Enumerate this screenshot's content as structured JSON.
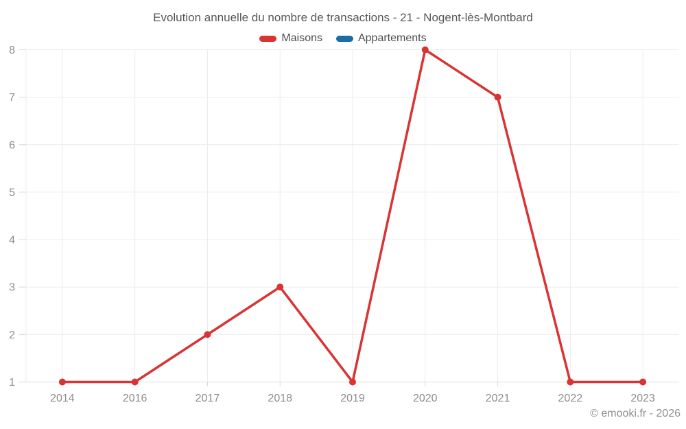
{
  "title": "Evolution annuelle du nombre de transactions - 21 - Nogent-lès-Montbard",
  "legend": {
    "items": [
      {
        "label": "Maisons",
        "color": "#d93333"
      },
      {
        "label": "Appartements",
        "color": "#1a6da6"
      }
    ]
  },
  "footer": {
    "copyright": "© emooki.fr - 2026"
  },
  "colors": {
    "background": "#ffffff",
    "grid_line": "#ececec",
    "axis_line": "#dcdcdc",
    "axis_tick": "#d6d6d6",
    "axis_label": "#8d8d8d",
    "title_text": "#565656",
    "legend_text": "#4d4d4d",
    "copyright_text": "#8f8f8f"
  },
  "chart_data": {
    "type": "line",
    "title": "Evolution annuelle du nombre de transactions - 21 - Nogent-lès-Montbard",
    "categories": [
      "2014",
      "2016",
      "2017",
      "2018",
      "2019",
      "2020",
      "2021",
      "2022",
      "2023"
    ],
    "series": [
      {
        "name": "Maisons",
        "color": "#d93333",
        "values": [
          1,
          1,
          2,
          3,
          1,
          8,
          7,
          1,
          1
        ]
      },
      {
        "name": "Appartements",
        "color": "#1a6da6",
        "values": [
          null,
          null,
          null,
          null,
          null,
          null,
          null,
          null,
          null
        ]
      }
    ],
    "xlabel": "",
    "ylabel": "",
    "ylim": [
      1,
      8
    ],
    "yticks": [
      1,
      2,
      3,
      4,
      5,
      6,
      7,
      8
    ],
    "grid": true,
    "legend_position": "top"
  }
}
